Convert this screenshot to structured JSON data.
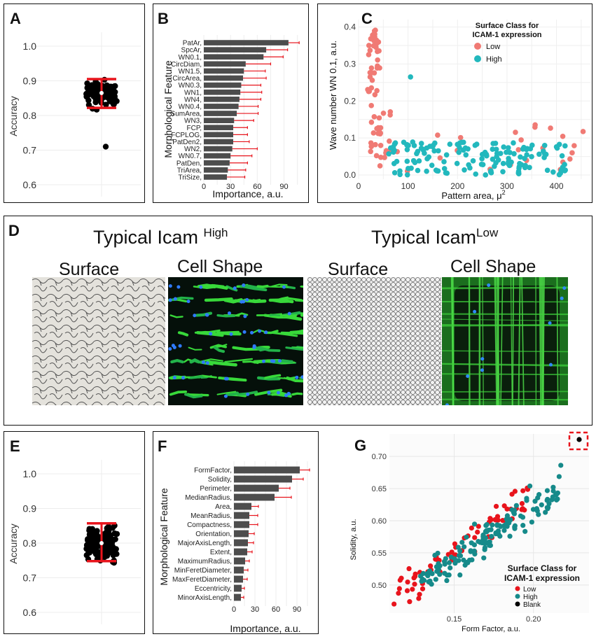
{
  "panels": {
    "A": {
      "label": "A",
      "ylabel": "Accuracy",
      "yticks": [
        "1.0",
        "0.9",
        "0.8",
        "0.7",
        "0.6"
      ],
      "mean": 0.865,
      "upper": 0.905,
      "lower": 0.822,
      "outlier": 0.71
    },
    "B": {
      "label": "B",
      "ylabel": "Morphological Feature",
      "xlabel": "Importance, a.u.",
      "xticks": [
        "0",
        "30",
        "60",
        "90"
      ],
      "features": [
        "PatAr,",
        "SpcAr,",
        "WN0.1,",
        "CircDiam,",
        "WN1.5,",
        "CircArea,",
        "WN0.3,",
        "WN1,",
        "WN4,",
        "WN0.4,",
        "SumArea,",
        "WN3,",
        "FCP,",
        "FCPLOG,",
        "PatDen2,",
        "WN2,",
        "WN0.7,",
        "PatDen,",
        "TriArea,",
        "TriSize,"
      ],
      "values": [
        95,
        70,
        67,
        47,
        45,
        44,
        42,
        41,
        40,
        39,
        37,
        34,
        33,
        33,
        33,
        32,
        30,
        29,
        27,
        26
      ],
      "errors": [
        12,
        24,
        22,
        28,
        24,
        26,
        22,
        24,
        24,
        22,
        24,
        22,
        16,
        16,
        18,
        28,
        24,
        20,
        20,
        20
      ]
    },
    "C": {
      "label": "C",
      "xlabel": "Pattern area, μ",
      "xlabel_sup": "2",
      "ylabel": "Wave number WN 0.1, a.u.",
      "xticks": [
        "0",
        "100",
        "200",
        "300",
        "400"
      ],
      "yticks": [
        "0.0",
        "0.1",
        "0.2",
        "0.3",
        "0.4"
      ],
      "legend_title_1": "Surface Class for",
      "legend_title_2": "ICAM-1 expression",
      "legend_low": "Low",
      "legend_high": "High",
      "color_low": "#f07a74",
      "color_high": "#22b8bd"
    },
    "D": {
      "label": "D",
      "title_high_main": "Typical Icam ",
      "title_high_sup": "High",
      "title_low_main": "Typical Icam",
      "title_low_sup": "Low",
      "surface_1": "Surface",
      "cellshape_1": "Cell Shape",
      "surface_2": "Surface",
      "cellshape_2": "Cell Shape"
    },
    "E": {
      "label": "E",
      "ylabel": "Accuracy",
      "yticks": [
        "1.0",
        "0.9",
        "0.8",
        "0.7",
        "0.6"
      ],
      "mean": 0.8,
      "upper": 0.857,
      "lower": 0.748
    },
    "F": {
      "label": "F",
      "ylabel": "Morphological Feature",
      "xlabel": "Importance, a.u.",
      "xticks": [
        "0",
        "30",
        "60",
        "90"
      ],
      "features": [
        "FormFactor,",
        "Solidity,",
        "Perimeter,",
        "MedianRadius,",
        "Area,",
        "MeanRadius,",
        "Compactness,",
        "Orientation,",
        "MajorAxisLength,",
        "Extent,",
        "MaximumRadius,",
        "MinFeretDiameter,",
        "MaxFeretDiameter,",
        "Eccentricity,",
        "MinorAxisLength,"
      ],
      "values": [
        94,
        83,
        64,
        58,
        25,
        22,
        22,
        21,
        20,
        19,
        16,
        14,
        13,
        11,
        10
      ],
      "errors": [
        14,
        16,
        16,
        24,
        10,
        12,
        12,
        8,
        8,
        7,
        6,
        6,
        6,
        4,
        4
      ]
    },
    "G": {
      "label": "G",
      "xlabel": "Form Factor, a.u.",
      "ylabel": "Solidity, a.u.",
      "xticks": [
        "0.15",
        "0.20"
      ],
      "yticks": [
        "0.70",
        "0.65",
        "0.60",
        "0.55",
        "0.50"
      ],
      "legend_title_1": "Surface Class for",
      "legend_title_2": "ICAM-1 expression",
      "legend_low": "Low",
      "legend_high": "High",
      "legend_blank": "Blank",
      "color_low": "#e8141c",
      "color_high": "#168a8a",
      "color_blank": "#000000"
    }
  }
}
